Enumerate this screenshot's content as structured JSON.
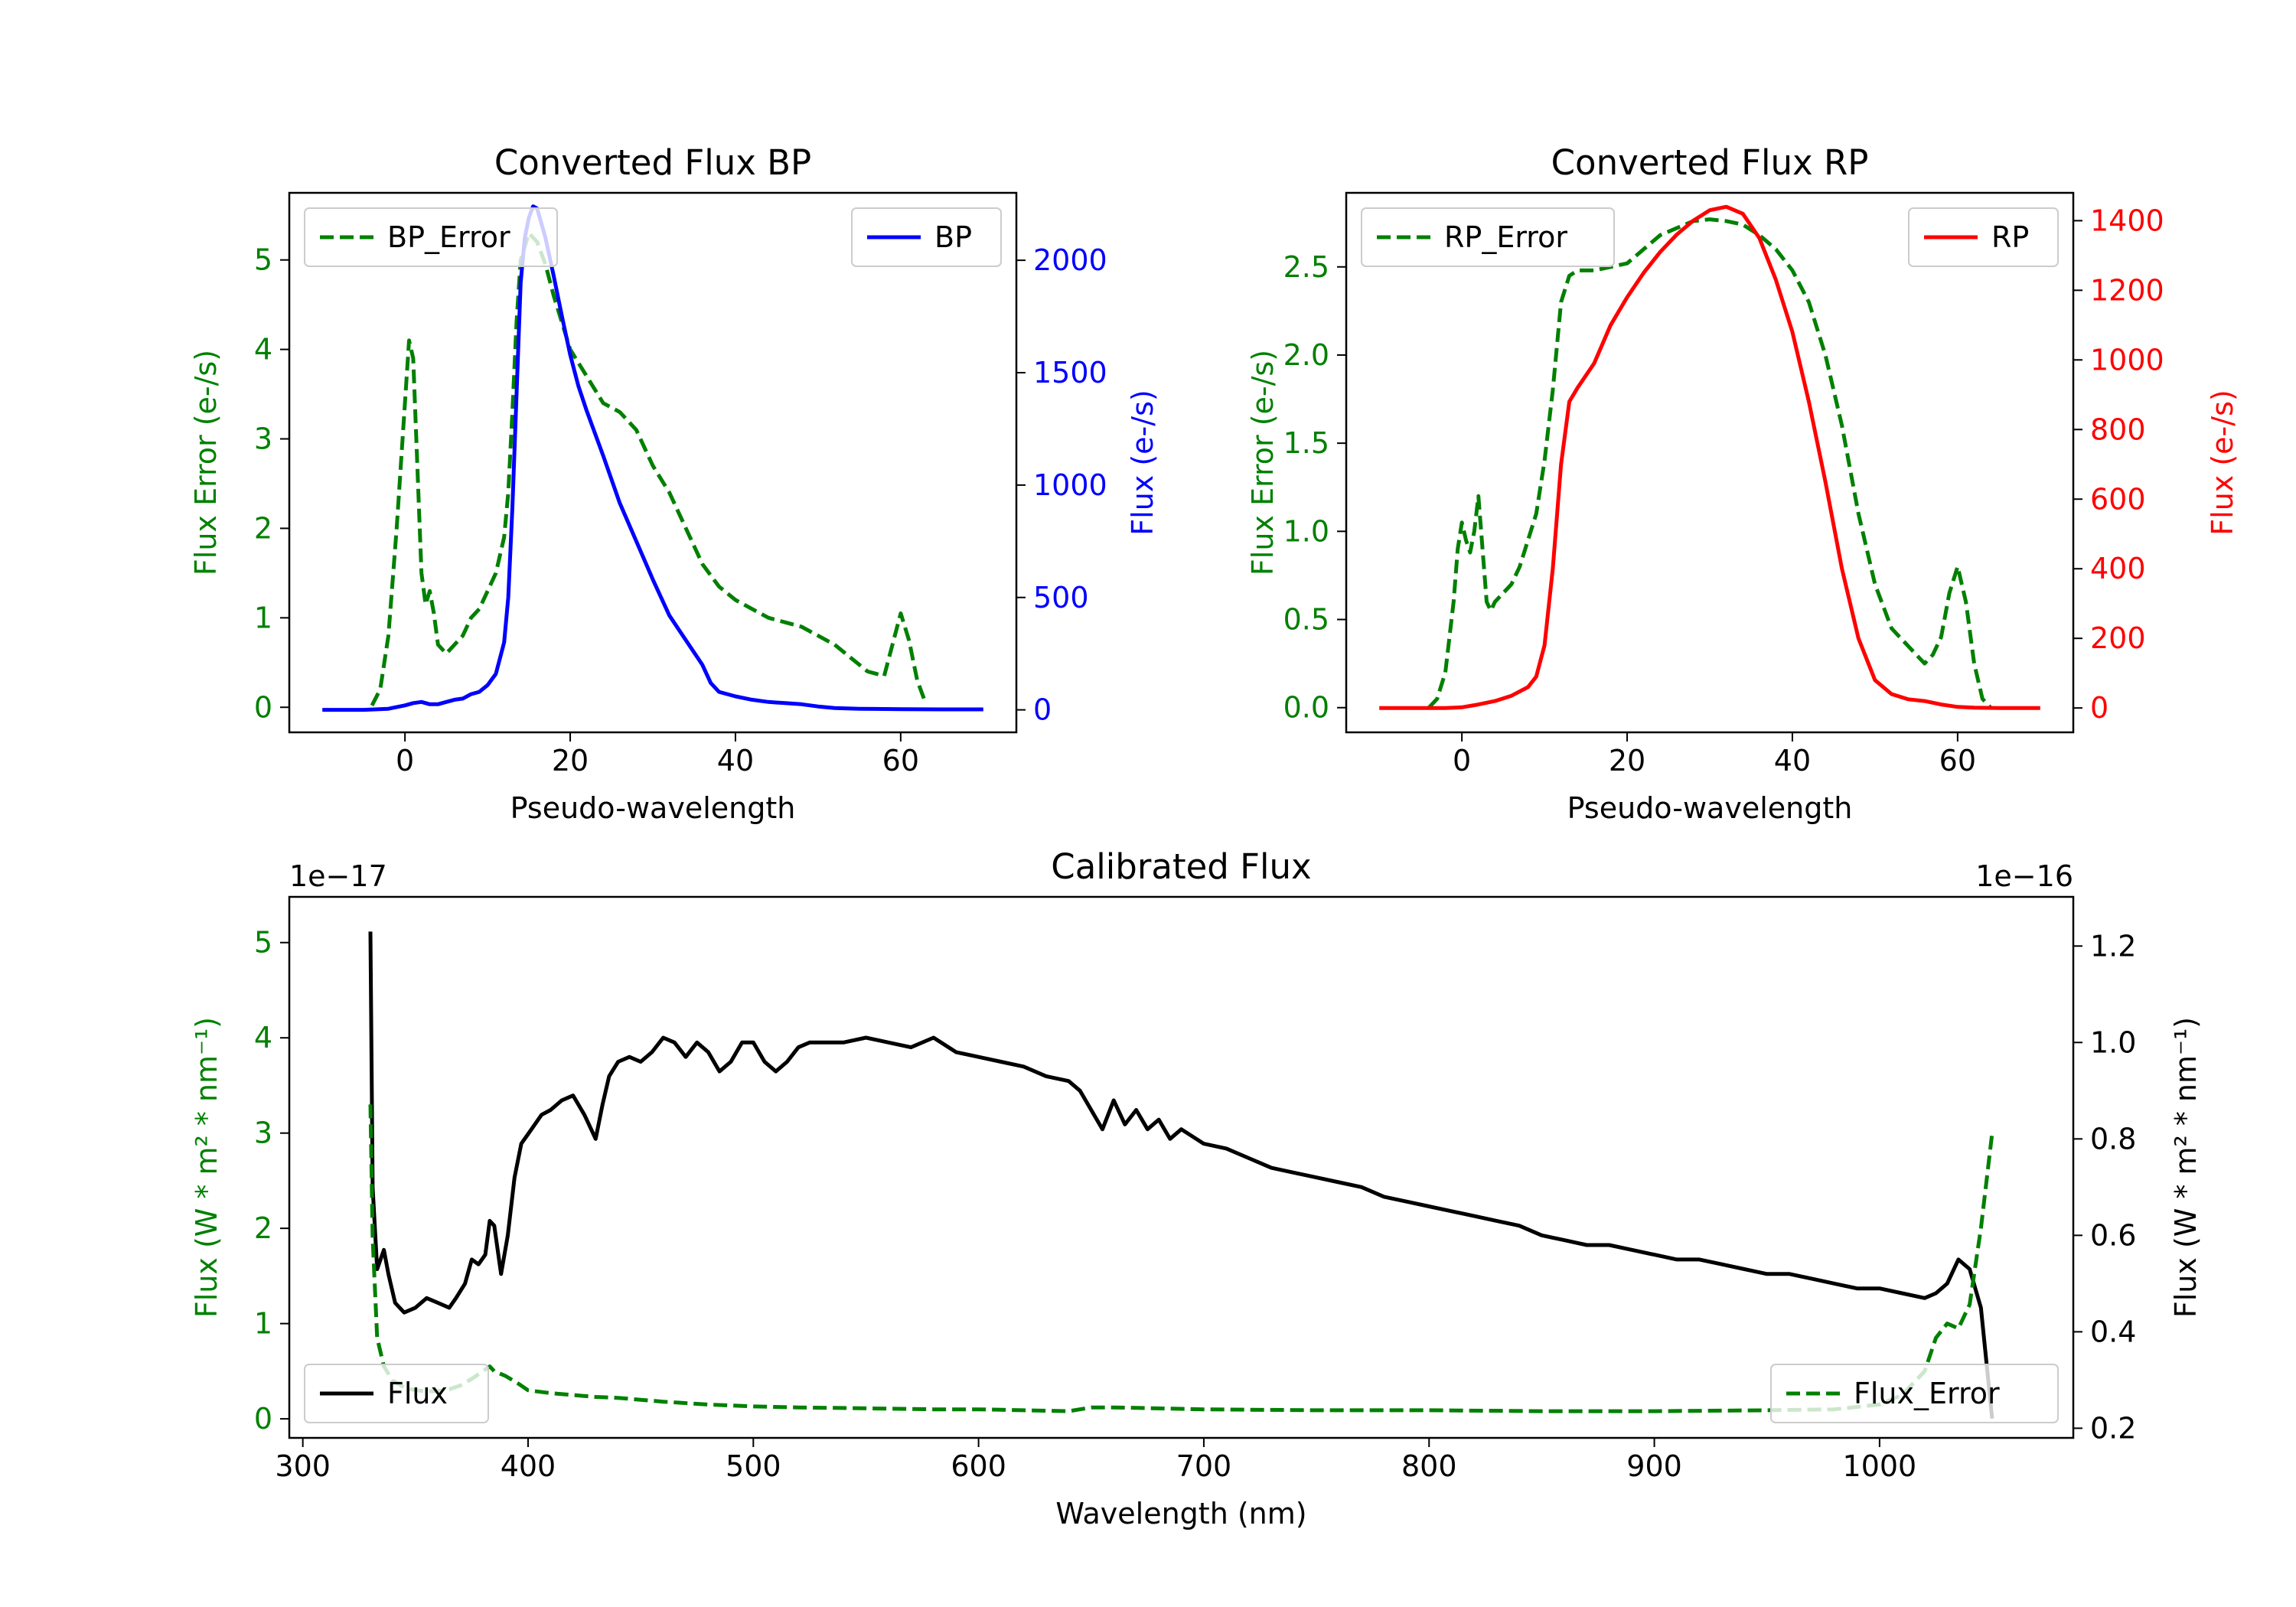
{
  "chart_data": [
    {
      "id": "bp",
      "type": "line",
      "title": "Converted Flux BP",
      "xlabel": "Pseudo-wavelength",
      "xlim": [
        -14,
        74
      ],
      "xticks": [
        0,
        20,
        40,
        60
      ],
      "left_axis": {
        "label": "Flux Error (e-/s)",
        "color": "#008000",
        "ylim": [
          -0.28,
          5.75
        ],
        "ticks": [
          0,
          1,
          2,
          3,
          4,
          5
        ]
      },
      "right_axis": {
        "label": "Flux (e-/s)",
        "color": "#0000ff",
        "ylim": [
          -100,
          2300
        ],
        "ticks": [
          0,
          500,
          1000,
          1500,
          2000
        ]
      },
      "series": [
        {
          "name": "BP_Error",
          "axis": "left",
          "style": "dashed",
          "color": "#008000",
          "x": [
            -4,
            -3,
            -2,
            -1,
            0,
            0.5,
            1,
            2,
            2.5,
            3,
            3.5,
            4,
            5,
            6,
            7,
            8,
            9,
            10,
            11,
            12,
            12.5,
            13,
            13.5,
            14,
            15,
            16,
            17,
            18,
            19,
            20,
            22,
            24,
            26,
            28,
            30,
            32,
            34,
            36,
            38,
            40,
            42,
            44,
            46,
            48,
            50,
            52,
            54,
            56,
            58,
            59,
            60,
            61,
            62,
            63
          ],
          "y": [
            0.02,
            0.2,
            0.8,
            2.0,
            3.4,
            4.1,
            3.9,
            1.5,
            1.15,
            1.3,
            1.05,
            0.7,
            0.6,
            0.7,
            0.8,
            1.0,
            1.1,
            1.3,
            1.5,
            1.9,
            2.4,
            3.3,
            4.3,
            5.0,
            5.3,
            5.2,
            4.95,
            4.6,
            4.3,
            4.0,
            3.7,
            3.4,
            3.3,
            3.1,
            2.7,
            2.4,
            2.0,
            1.6,
            1.35,
            1.2,
            1.1,
            1.0,
            0.95,
            0.9,
            0.8,
            0.7,
            0.55,
            0.4,
            0.35,
            0.7,
            1.05,
            0.75,
            0.3,
            0.05
          ]
        },
        {
          "name": "BP",
          "axis": "right",
          "style": "solid",
          "color": "#0000ff",
          "x": [
            -10,
            -5,
            -2,
            0,
            1,
            2,
            3,
            4,
            5,
            6,
            7,
            8,
            9,
            10,
            11,
            12,
            12.5,
            13,
            13.5,
            14,
            14.5,
            15,
            15.5,
            16,
            17,
            18,
            19,
            20,
            21,
            22,
            24,
            26,
            28,
            30,
            32,
            34,
            36,
            37,
            38,
            40,
            42,
            44,
            46,
            48,
            50,
            52,
            55,
            60,
            65,
            70
          ],
          "y": [
            0,
            0,
            5,
            20,
            30,
            35,
            25,
            25,
            35,
            45,
            50,
            70,
            80,
            110,
            160,
            300,
            500,
            900,
            1400,
            1900,
            2100,
            2190,
            2240,
            2230,
            2100,
            1930,
            1750,
            1580,
            1440,
            1330,
            1130,
            920,
            750,
            580,
            420,
            310,
            200,
            120,
            80,
            60,
            45,
            35,
            30,
            25,
            15,
            8,
            5,
            3,
            2,
            2
          ]
        }
      ],
      "legend": [
        {
          "label": "BP_Error",
          "position": "upper-left"
        },
        {
          "label": "BP",
          "position": "upper-right"
        }
      ]
    },
    {
      "id": "rp",
      "type": "line",
      "title": "Converted Flux RP",
      "xlabel": "Pseudo-wavelength",
      "xlim": [
        -14,
        74
      ],
      "xticks": [
        0,
        20,
        40,
        60
      ],
      "left_axis": {
        "label": "Flux Error (e-/s)",
        "color": "#008000",
        "ylim": [
          -0.14,
          2.92
        ],
        "ticks": [
          0.0,
          0.5,
          1.0,
          1.5,
          2.0,
          2.5
        ],
        "tick_labels": [
          "0.0",
          "0.5",
          "1.0",
          "1.5",
          "2.0",
          "2.5"
        ]
      },
      "right_axis": {
        "label": "Flux (e-/s)",
        "color": "#ff0000",
        "ylim": [
          -70,
          1480
        ],
        "ticks": [
          0,
          200,
          400,
          600,
          800,
          1000,
          1200,
          1400
        ]
      },
      "series": [
        {
          "name": "RP_Error",
          "axis": "left",
          "style": "dashed",
          "color": "#008000",
          "x": [
            -4,
            -3,
            -2,
            -1,
            -0.5,
            0,
            0.5,
            1,
            1.5,
            2,
            2.5,
            3,
            3.5,
            4,
            5,
            6,
            7,
            8,
            9,
            10,
            11,
            12,
            13,
            14,
            16,
            18,
            20,
            22,
            24,
            26,
            28,
            30,
            32,
            34,
            36,
            38,
            40,
            42,
            44,
            46,
            48,
            50,
            52,
            54,
            56,
            57,
            58,
            59,
            60,
            61,
            62,
            63,
            64
          ],
          "y": [
            0.0,
            0.05,
            0.2,
            0.6,
            0.9,
            1.05,
            0.95,
            0.88,
            1.0,
            1.2,
            0.9,
            0.6,
            0.55,
            0.6,
            0.65,
            0.7,
            0.8,
            0.95,
            1.1,
            1.4,
            1.8,
            2.3,
            2.45,
            2.48,
            2.48,
            2.5,
            2.52,
            2.6,
            2.68,
            2.72,
            2.76,
            2.77,
            2.76,
            2.74,
            2.68,
            2.6,
            2.48,
            2.3,
            2.0,
            1.6,
            1.1,
            0.7,
            0.45,
            0.35,
            0.25,
            0.3,
            0.4,
            0.65,
            0.8,
            0.6,
            0.25,
            0.05,
            0.0
          ]
        },
        {
          "name": "RP",
          "axis": "right",
          "style": "solid",
          "color": "#ff0000",
          "x": [
            -10,
            -5,
            -2,
            0,
            2,
            4,
            6,
            8,
            9,
            10,
            11,
            12,
            13,
            14,
            16,
            18,
            20,
            22,
            24,
            26,
            28,
            30,
            32,
            34,
            36,
            38,
            40,
            42,
            44,
            46,
            48,
            50,
            52,
            54,
            56,
            58,
            60,
            62,
            65,
            70
          ],
          "y": [
            0,
            0,
            0,
            2,
            10,
            20,
            35,
            60,
            90,
            180,
            400,
            700,
            880,
            920,
            990,
            1100,
            1180,
            1250,
            1310,
            1360,
            1400,
            1430,
            1440,
            1420,
            1350,
            1230,
            1080,
            880,
            650,
            400,
            200,
            80,
            40,
            25,
            20,
            10,
            3,
            1,
            0,
            0
          ]
        }
      ],
      "legend": [
        {
          "label": "RP_Error",
          "position": "upper-left"
        },
        {
          "label": "RP",
          "position": "upper-right"
        }
      ]
    },
    {
      "id": "cal",
      "type": "line",
      "title": "Calibrated Flux",
      "xlabel": "Wavelength (nm)",
      "xlim": [
        294,
        1086
      ],
      "xticks": [
        300,
        400,
        500,
        600,
        700,
        800,
        900,
        1000
      ],
      "left_axis": {
        "label": "Flux (W * m² * nm⁻¹)",
        "color": "#008000",
        "offset_text": "1e−17",
        "ylim": [
          -0.2,
          5.48
        ],
        "ticks": [
          0,
          1,
          2,
          3,
          4,
          5
        ]
      },
      "right_axis": {
        "label": "Flux (W * m² * nm⁻¹)",
        "color": "#000000",
        "offset_text": "1e−16",
        "ylim": [
          0.18,
          1.302
        ],
        "ticks": [
          0.2,
          0.4,
          0.6,
          0.8,
          1.0,
          1.2
        ],
        "tick_labels": [
          "0.2",
          "0.4",
          "0.6",
          "0.8",
          "1.0",
          "1.2"
        ]
      },
      "series": [
        {
          "name": "Flux",
          "axis": "right",
          "style": "solid",
          "color": "#000000",
          "x": [
            330,
            331,
            333,
            336,
            338,
            341,
            345,
            350,
            355,
            360,
            365,
            368,
            372,
            375,
            378,
            381,
            383,
            385,
            388,
            391,
            394,
            397,
            400,
            403,
            406,
            410,
            415,
            420,
            425,
            430,
            433,
            436,
            440,
            445,
            450,
            455,
            460,
            465,
            470,
            475,
            480,
            485,
            490,
            495,
            500,
            505,
            510,
            515,
            520,
            525,
            530,
            540,
            550,
            560,
            570,
            580,
            590,
            600,
            610,
            620,
            630,
            640,
            645,
            650,
            655,
            660,
            665,
            670,
            675,
            680,
            685,
            690,
            700,
            710,
            720,
            730,
            740,
            750,
            760,
            770,
            780,
            790,
            800,
            810,
            820,
            830,
            840,
            850,
            860,
            870,
            880,
            890,
            900,
            910,
            920,
            930,
            940,
            950,
            960,
            970,
            980,
            990,
            1000,
            1010,
            1020,
            1025,
            1030,
            1035,
            1040,
            1045,
            1050
          ],
          "y": [
            1.23,
            0.7,
            0.53,
            0.57,
            0.52,
            0.46,
            0.44,
            0.45,
            0.47,
            0.46,
            0.45,
            0.47,
            0.5,
            0.55,
            0.54,
            0.56,
            0.63,
            0.62,
            0.52,
            0.6,
            0.72,
            0.79,
            0.81,
            0.83,
            0.85,
            0.86,
            0.88,
            0.89,
            0.85,
            0.8,
            0.87,
            0.93,
            0.96,
            0.97,
            0.96,
            0.98,
            1.01,
            1.0,
            0.97,
            1.0,
            0.98,
            0.94,
            0.96,
            1.0,
            1.0,
            0.96,
            0.94,
            0.96,
            0.99,
            1.0,
            1.0,
            1.0,
            1.01,
            1.0,
            0.99,
            1.01,
            0.98,
            0.97,
            0.96,
            0.95,
            0.93,
            0.92,
            0.9,
            0.86,
            0.82,
            0.88,
            0.83,
            0.86,
            0.82,
            0.84,
            0.8,
            0.82,
            0.79,
            0.78,
            0.76,
            0.74,
            0.73,
            0.72,
            0.71,
            0.7,
            0.68,
            0.67,
            0.66,
            0.65,
            0.64,
            0.63,
            0.62,
            0.6,
            0.59,
            0.58,
            0.58,
            0.57,
            0.56,
            0.55,
            0.55,
            0.54,
            0.53,
            0.52,
            0.52,
            0.51,
            0.5,
            0.49,
            0.49,
            0.48,
            0.47,
            0.48,
            0.5,
            0.55,
            0.53,
            0.45,
            0.22
          ]
        },
        {
          "name": "Flux_Error",
          "axis": "left",
          "style": "dashed",
          "color": "#008000",
          "x": [
            330,
            331,
            333,
            336,
            340,
            345,
            350,
            355,
            360,
            365,
            370,
            375,
            380,
            383,
            385,
            390,
            395,
            400,
            410,
            420,
            430,
            440,
            450,
            460,
            480,
            500,
            520,
            550,
            580,
            600,
            620,
            640,
            650,
            660,
            700,
            750,
            800,
            850,
            900,
            950,
            980,
            1000,
            1010,
            1020,
            1025,
            1030,
            1035,
            1040,
            1045,
            1050
          ],
          "y": [
            3.3,
            1.9,
            0.85,
            0.55,
            0.4,
            0.33,
            0.3,
            0.29,
            0.29,
            0.31,
            0.35,
            0.42,
            0.5,
            0.55,
            0.5,
            0.45,
            0.38,
            0.3,
            0.27,
            0.25,
            0.23,
            0.22,
            0.2,
            0.18,
            0.15,
            0.13,
            0.12,
            0.11,
            0.1,
            0.1,
            0.09,
            0.08,
            0.12,
            0.12,
            0.1,
            0.09,
            0.09,
            0.08,
            0.08,
            0.09,
            0.1,
            0.15,
            0.25,
            0.5,
            0.85,
            1.0,
            0.95,
            1.2,
            2.0,
            3.0
          ]
        }
      ],
      "legend": [
        {
          "label": "Flux",
          "position": "lower-left"
        },
        {
          "label": "Flux_Error",
          "position": "lower-right"
        }
      ]
    }
  ]
}
